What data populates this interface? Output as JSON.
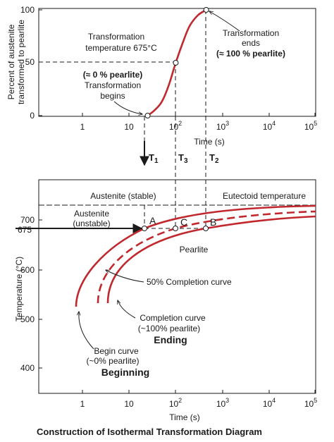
{
  "caption": "Construction of Isothermal Transformation Diagram",
  "colors": {
    "curve": "#c0282d",
    "ink": "#1a1a1a",
    "highlight": "#c0282d"
  },
  "top": {
    "ylabel_line1": "Percent of austenite",
    "ylabel_line2": "transformed to pearlite",
    "xlabel": "Time (s)",
    "yticks": [
      "0",
      "50",
      "100"
    ],
    "xticks": [
      {
        "base": "1",
        "exp": ""
      },
      {
        "base": "10",
        "exp": ""
      },
      {
        "base": "10",
        "exp": "2"
      },
      {
        "base": "10",
        "exp": "3"
      },
      {
        "base": "10",
        "exp": "4"
      },
      {
        "base": "10",
        "exp": "5"
      }
    ],
    "temp_label_line1": "Transformation",
    "temp_label_line2": "temperature 675°C",
    "begins_line1": "(≈ 0 % pearlite)",
    "begins_line2": "Transformation",
    "begins_line3": "begins",
    "ends_line1": "Transformation",
    "ends_line2": "ends",
    "ends_line3": "(≈ 100 % pearlite)"
  },
  "markers": {
    "t1": "T",
    "t1_sub": "1",
    "t3": "T",
    "t3_sub": "3",
    "t2": "T",
    "t2_sub": "2"
  },
  "bottom": {
    "ylabel": "Temperature (°C)",
    "xlabel": "Time (s)",
    "yticks": [
      "400",
      "500",
      "600",
      "700"
    ],
    "highlight_tick": "675",
    "austenite_stable": "Austenite (stable)",
    "eutectoid": "Eutectoid temperature",
    "austenite_unstable_line1": "Austenite",
    "austenite_unstable_line2": "(unstable)",
    "point_a": "A",
    "point_b": "B",
    "point_c": "C",
    "pearlite": "Pearlite",
    "fifty": "50% Completion curve",
    "completion_line1": "Completion curve",
    "completion_line2": "(~100% pearlite)",
    "ending": "Ending",
    "begin_line1": "Begin curve",
    "begin_line2": "(~0% pearlite)",
    "beginning": "Beginning"
  },
  "chart_data": {
    "type": "line",
    "xlabel": "Time (s)",
    "ylabel": "Percent of austenite transformed to pearlite",
    "x_scale": "log",
    "xlim": [
      0.3,
      100000
    ],
    "ylim": [
      0,
      100
    ],
    "series": [
      {
        "x": [
          25,
          35,
          50,
          70,
          100,
          150,
          200,
          300,
          450
        ],
        "y": [
          0,
          5,
          13,
          28,
          50,
          72,
          85,
          95,
          100
        ]
      }
    ]
  }
}
